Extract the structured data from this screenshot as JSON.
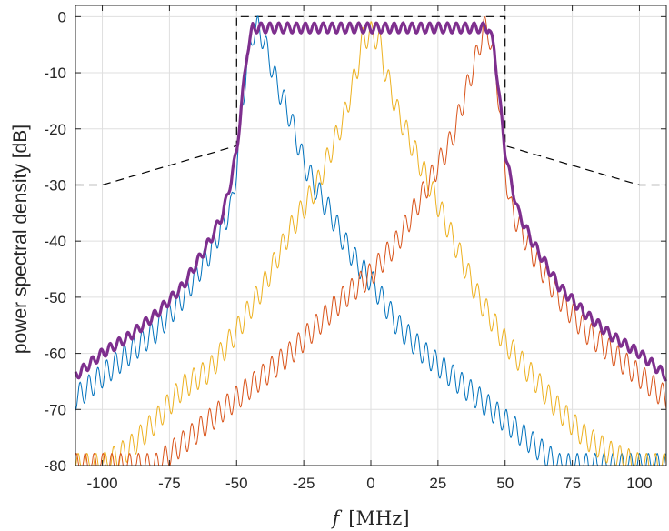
{
  "chart_data": {
    "type": "line",
    "title": "",
    "xlabel_var": "f",
    "xlabel_unit": "[MHz]",
    "ylabel": "power spectral density [dB]",
    "xlim": [
      -110,
      110
    ],
    "ylim": [
      -80,
      2
    ],
    "grid": true,
    "legend": "none",
    "x_tick_values": [
      -100,
      -75,
      -50,
      -25,
      0,
      25,
      50,
      75,
      100
    ],
    "x_tick_labels": [
      "-100",
      "-75",
      "-50",
      "-25",
      "0",
      "25",
      "50",
      "75",
      "100"
    ],
    "y_tick_values": [
      0,
      -10,
      -20,
      -30,
      -40,
      -50,
      -60,
      -70,
      -80
    ],
    "y_tick_labels": [
      "0",
      "-10",
      "-20",
      "-30",
      "-40",
      "-50",
      "-60",
      "-70",
      "-80"
    ],
    "series": [
      {
        "color": "#0072bd",
        "stroke_width": 1,
        "x": [
          -110,
          -100,
          -90,
          -80,
          -70,
          -60,
          -52,
          -50,
          -48,
          -46,
          -44,
          -42,
          -40,
          -35,
          -30,
          -25,
          -20,
          -15,
          -10,
          -5,
          0,
          5,
          10,
          20,
          30,
          40,
          50,
          60,
          70,
          80,
          90,
          100,
          110
        ],
        "y": [
          -68,
          -64,
          -60,
          -56,
          -50,
          -42,
          -34,
          -27,
          -16,
          -8,
          -3,
          -2,
          -4,
          -12,
          -18,
          -26,
          -31,
          -35,
          -40,
          -44,
          -47,
          -51,
          -55,
          -60,
          -64,
          -68,
          -72,
          -76,
          -80,
          -80,
          -80,
          -80,
          -80
        ]
      },
      {
        "color": "#edb120",
        "stroke_width": 1,
        "x": [
          -110,
          -100,
          -90,
          -80,
          -70,
          -60,
          -50,
          -40,
          -30,
          -20,
          -10,
          -5,
          -3,
          0,
          3,
          5,
          10,
          20,
          30,
          40,
          50,
          60,
          70,
          80,
          90,
          100,
          110
        ],
        "y": [
          -80,
          -80,
          -77,
          -72,
          -66,
          -63,
          -56,
          -48,
          -38,
          -30,
          -18,
          -9,
          -4,
          -3,
          -4,
          -9,
          -17,
          -28,
          -39,
          -50,
          -58,
          -64,
          -70,
          -75,
          -78,
          -80,
          -80
        ]
      },
      {
        "color": "#d95319",
        "stroke_width": 1,
        "x": [
          -110,
          -100,
          -90,
          -80,
          -70,
          -60,
          -50,
          -40,
          -30,
          -20,
          -10,
          0,
          10,
          20,
          30,
          35,
          40,
          42,
          44,
          46,
          48,
          50,
          52,
          60,
          70,
          80,
          90,
          100,
          110
        ],
        "y": [
          -80,
          -80,
          -80,
          -80,
          -76,
          -72,
          -68,
          -64,
          -60,
          -55,
          -50,
          -46,
          -40,
          -31,
          -22,
          -14,
          -6,
          -2,
          -3,
          -8,
          -16,
          -27,
          -34,
          -42,
          -50,
          -56,
          -60,
          -64,
          -68
        ]
      },
      {
        "color": "#7e2f8e",
        "stroke_width": 3.2,
        "x": [
          -110,
          -100,
          -90,
          -80,
          -70,
          -60,
          -55,
          -52,
          -50,
          -48,
          -46,
          -44,
          -42,
          -40,
          -30,
          -20,
          -10,
          0,
          10,
          20,
          30,
          40,
          42,
          44,
          46,
          48,
          50,
          52,
          55,
          60,
          70,
          80,
          90,
          100,
          110
        ],
        "y": [
          -64,
          -60,
          -57,
          -53,
          -48,
          -40,
          -35,
          -29,
          -24,
          -15,
          -6,
          -2,
          -2,
          -2,
          -2,
          -2,
          -2,
          -2,
          -2,
          -2,
          -2,
          -2,
          -2,
          -2,
          -6,
          -15,
          -24,
          -29,
          -35,
          -40,
          -48,
          -53,
          -57,
          -60,
          -64
        ]
      }
    ],
    "mask": {
      "style": "dashed",
      "color": "#000000",
      "x": [
        -110,
        -100,
        -50,
        -50,
        50,
        50,
        100,
        110
      ],
      "y": [
        -30,
        -30,
        -23,
        0,
        0,
        -23,
        -30,
        -30
      ]
    }
  }
}
